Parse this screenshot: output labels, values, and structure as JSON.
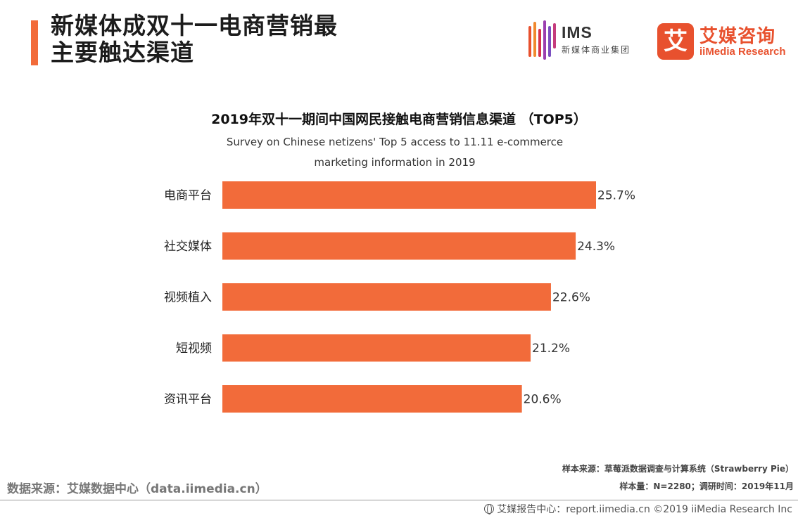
{
  "header": {
    "title_line1": "新媒体成双十一电商营销最",
    "title_line2": "主要触达渠道"
  },
  "logos": {
    "ims_name": "IMS",
    "ims_subtitle": "新媒体商业集团",
    "imedia_mark": "艾",
    "imedia_cn": "艾媒咨询",
    "imedia_en": "iiMedia Research"
  },
  "colors": {
    "accent": "#f26b3a",
    "bar": "#f26b3a",
    "brand_red": "#e8512e"
  },
  "chart_data": {
    "type": "bar",
    "orientation": "horizontal",
    "title": "2019年双十一期间中国网民接触电商营销信息渠道 （TOP5）",
    "subtitle_line1": "Survey on Chinese netizens' Top 5 access to 11.11 e-commerce",
    "subtitle_line2": "marketing information in 2019",
    "categories": [
      "电商平台",
      "社交媒体",
      "视频植入",
      "短视频",
      "资讯平台"
    ],
    "values": [
      25.7,
      24.3,
      22.6,
      21.2,
      20.6
    ],
    "value_labels": [
      "25.7%",
      "24.3%",
      "22.6%",
      "21.2%",
      "20.6%"
    ],
    "unit": "%",
    "xlim": [
      0,
      25.7
    ],
    "grid": false,
    "legend": "none"
  },
  "notes": {
    "sample_source": "样本来源：草莓派数据调查与计算系统（Strawberry Pie）",
    "sample_size": "样本量：N=2280；调研时间：2019年11月"
  },
  "data_source": "数据来源：艾媒数据中心（data.iimedia.cn）",
  "footer": "艾媒报告中心：report.iimedia.cn ©2019 iiMedia Research Inc"
}
